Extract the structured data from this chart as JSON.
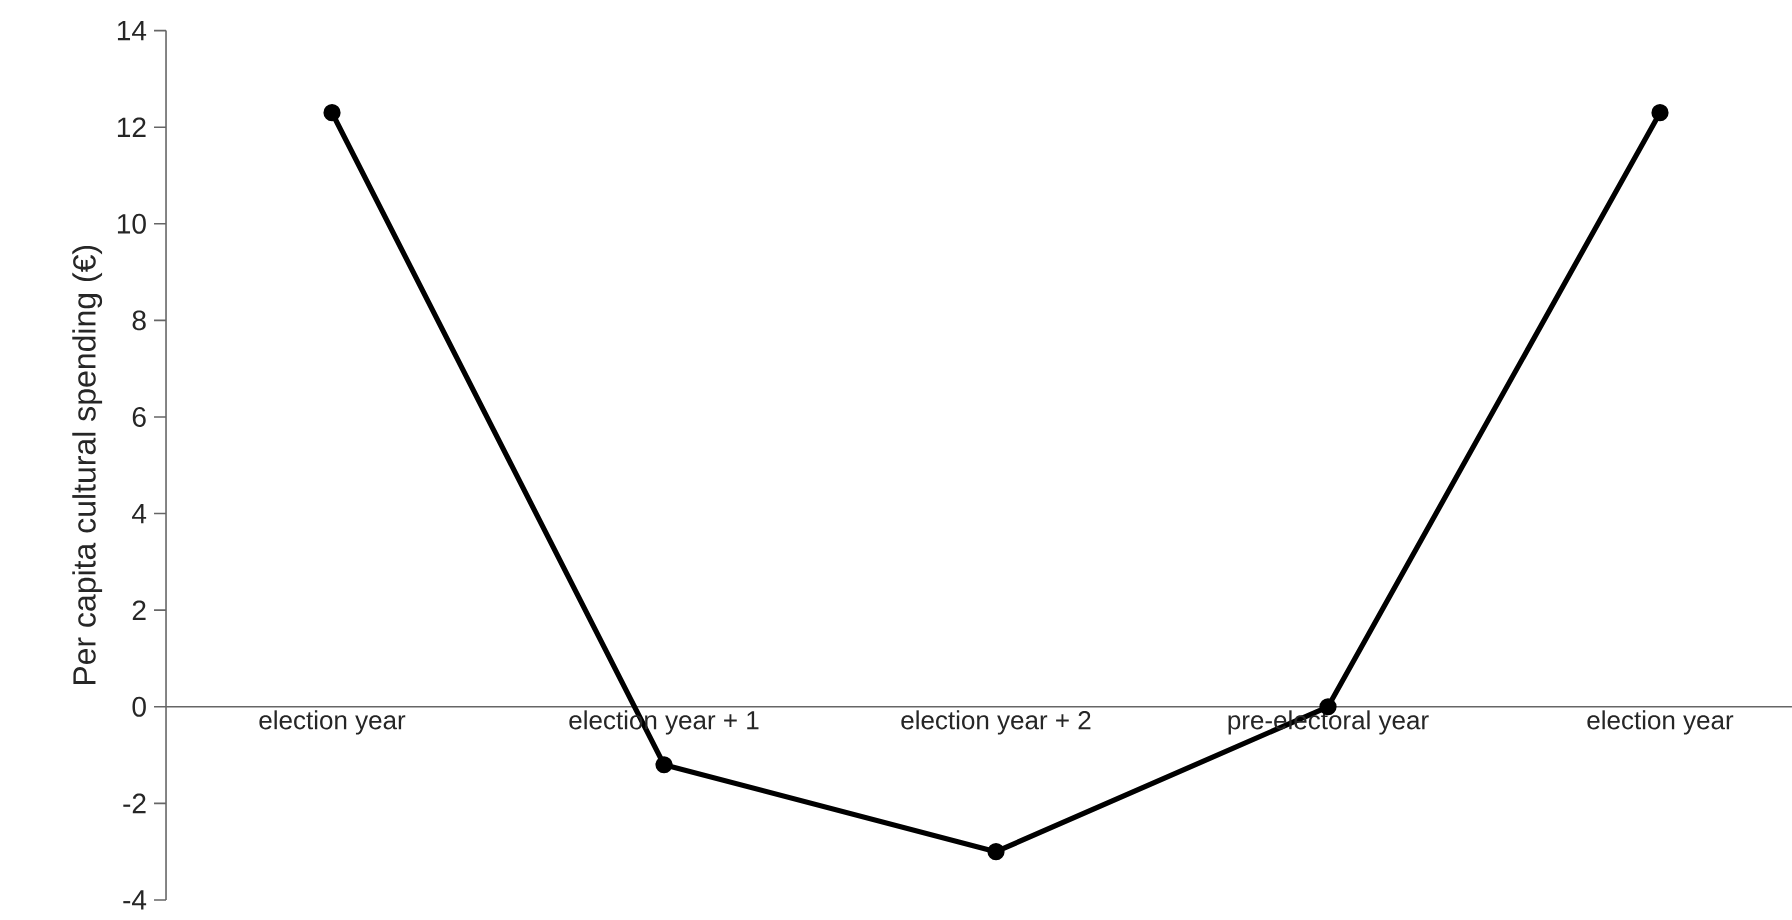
{
  "chart_data": {
    "type": "line",
    "ylabel": "Per capita cultural spending (€)",
    "categories": [
      "election year",
      "election year + 1",
      "election year + 2",
      "pre-electoral year",
      "election year"
    ],
    "series": [
      {
        "color": "#000000",
        "values": [
          12.3,
          -1.2,
          -3.0,
          0.0,
          12.3
        ]
      }
    ],
    "ylim": [
      -4,
      14
    ],
    "yticks": [
      -4,
      -2,
      0,
      2,
      4,
      6,
      8,
      10,
      12,
      14
    ],
    "grid": false,
    "marker": "circle",
    "line_style": "solid"
  }
}
